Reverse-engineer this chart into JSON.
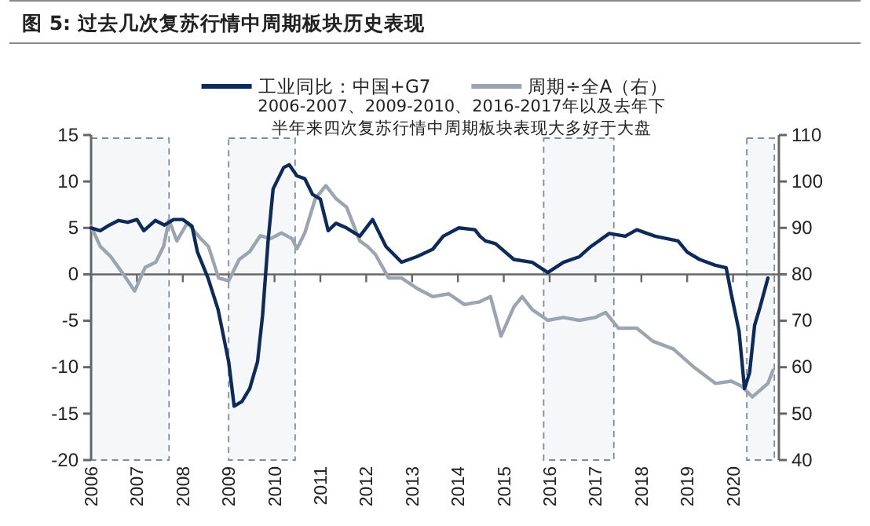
{
  "chart_data": {
    "type": "line",
    "title": "图 5:  过去几次复苏行情中周期板块历史表现",
    "annotations": [
      "2006-2007、2009-2010、2016-2017年以及去年下半年来四次复苏行情中周期板块表现大多好于大盘"
    ],
    "legend": "top",
    "line_style": "solid",
    "xlim": [
      2006,
      2021
    ],
    "xticks": [
      2006,
      2007,
      2008,
      2009,
      2010,
      2011,
      2012,
      2013,
      2014,
      2015,
      2016,
      2017,
      2018,
      2019,
      2020
    ],
    "ylim": [
      -20,
      15
    ],
    "yticks": [
      -20,
      -15,
      -10,
      -5,
      0,
      5,
      10,
      15
    ],
    "y2lim": [
      40,
      110
    ],
    "y2ticks": [
      40,
      50,
      60,
      70,
      80,
      90,
      100,
      110
    ],
    "bands": [
      {
        "axis": "x",
        "from": 2006.0,
        "to": 2007.7,
        "color": "#7f8c99"
      },
      {
        "axis": "x",
        "from": 2009.0,
        "to": 2010.45,
        "color": "#7f8c99"
      },
      {
        "axis": "x",
        "from": 2015.87,
        "to": 2017.4,
        "color": "#7f8c99"
      },
      {
        "axis": "x",
        "from": 2020.3,
        "to": 2020.9,
        "color": "#7f8c99"
      }
    ],
    "series": [
      {
        "name": "工业同比：中国+G7",
        "color": "#0d2b5a",
        "x": [
          2006.0,
          2006.2,
          2006.4,
          2006.6,
          2006.8,
          2007.0,
          2007.15,
          2007.4,
          2007.6,
          2007.8,
          2008.0,
          2008.2,
          2008.32,
          2008.55,
          2008.77,
          2009.0,
          2009.12,
          2009.29,
          2009.46,
          2009.63,
          2009.74,
          2009.86,
          2009.97,
          2010.2,
          2010.32,
          2010.49,
          2010.66,
          2010.83,
          2011.0,
          2011.17,
          2011.34,
          2011.57,
          2011.86,
          2012.14,
          2012.43,
          2012.77,
          2013.1,
          2013.45,
          2013.68,
          2014.02,
          2014.37,
          2014.48,
          2014.6,
          2014.82,
          2015.22,
          2015.62,
          2015.96,
          2016.3,
          2016.65,
          2016.9,
          2017.3,
          2017.65,
          2017.9,
          2018.3,
          2018.8,
          2019.0,
          2019.27,
          2019.6,
          2019.85,
          2019.96,
          2020.13,
          2020.25,
          2020.36,
          2020.47,
          2020.59,
          2020.76
        ],
        "values": [
          5.0,
          4.7,
          5.3,
          5.8,
          5.6,
          5.9,
          4.7,
          5.8,
          5.3,
          5.9,
          5.9,
          5.2,
          2.4,
          -0.4,
          -3.8,
          -9.4,
          -14.2,
          -13.7,
          -12.3,
          -9.4,
          -4.4,
          3.6,
          9.2,
          11.5,
          11.8,
          10.6,
          10.3,
          8.6,
          8.1,
          4.7,
          5.5,
          5.0,
          4.1,
          5.9,
          3.0,
          1.3,
          1.9,
          2.7,
          4.1,
          5.0,
          4.8,
          4.1,
          3.6,
          3.3,
          1.6,
          1.3,
          0.2,
          1.3,
          1.9,
          3.0,
          4.4,
          4.1,
          4.8,
          4.1,
          3.6,
          2.4,
          1.6,
          1.0,
          0.7,
          -2.1,
          -6.1,
          -12.3,
          -10.6,
          -5.5,
          -3.5,
          -0.4
        ]
      },
      {
        "name": "周期÷全A（右）",
        "color": "#9aa5b1",
        "axis": "y2",
        "x": [
          2006.0,
          2006.2,
          2006.43,
          2006.72,
          2006.95,
          2007.18,
          2007.41,
          2007.58,
          2007.7,
          2007.87,
          2008.1,
          2008.39,
          2008.56,
          2008.78,
          2009.0,
          2009.23,
          2009.46,
          2009.69,
          2009.92,
          2010.15,
          2010.38,
          2010.49,
          2010.66,
          2010.89,
          2011.12,
          2011.34,
          2011.57,
          2011.86,
          2012.03,
          2012.2,
          2012.49,
          2012.77,
          2013.12,
          2013.45,
          2013.8,
          2014.14,
          2014.48,
          2014.71,
          2014.94,
          2015.22,
          2015.4,
          2015.62,
          2015.96,
          2016.3,
          2016.65,
          2016.99,
          2017.22,
          2017.5,
          2017.9,
          2018.25,
          2018.7,
          2019.16,
          2019.62,
          2019.96,
          2020.19,
          2020.42,
          2020.76,
          2020.87
        ],
        "values": [
          90.3,
          86.0,
          83.8,
          79.8,
          76.4,
          81.5,
          82.6,
          86.0,
          91.7,
          87.2,
          91.1,
          87.7,
          86.0,
          79.2,
          78.6,
          83.2,
          84.9,
          88.3,
          87.7,
          88.9,
          87.7,
          85.5,
          88.9,
          96.3,
          99.1,
          96.3,
          94.5,
          87.2,
          86.0,
          84.3,
          79.2,
          79.2,
          76.9,
          75.2,
          75.8,
          73.5,
          74.1,
          75.2,
          66.7,
          73.0,
          75.2,
          72.4,
          70.1,
          70.7,
          70.1,
          70.7,
          71.8,
          68.4,
          68.4,
          65.6,
          63.9,
          59.9,
          56.5,
          57.0,
          55.9,
          53.6,
          56.5,
          59.3
        ]
      }
    ]
  }
}
